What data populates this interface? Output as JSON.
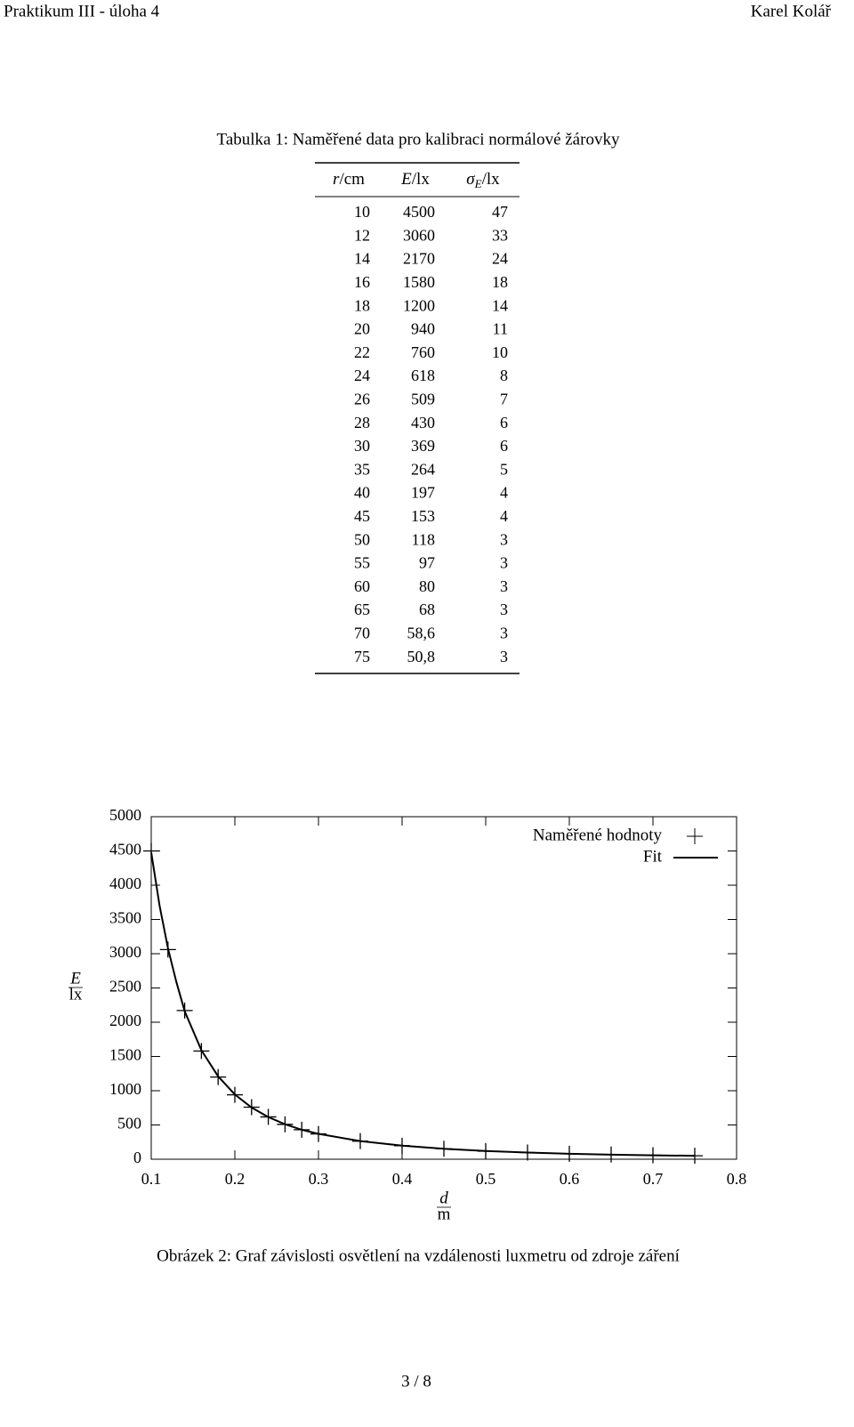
{
  "header": {
    "left": "Praktikum III - úloha 4",
    "right": "Karel Kolář"
  },
  "table": {
    "caption": "Tabulka 1: Naměřené data pro kalibraci normálové žárovky",
    "columns": [
      {
        "symbol": "r",
        "unit": "/cm"
      },
      {
        "symbol": "E",
        "unit": "/lx"
      },
      {
        "symbol": "σ",
        "subscript": "E",
        "unit": "/lx"
      }
    ],
    "rows": [
      [
        10,
        4500,
        47
      ],
      [
        12,
        3060,
        33
      ],
      [
        14,
        2170,
        24
      ],
      [
        16,
        1580,
        18
      ],
      [
        18,
        1200,
        14
      ],
      [
        20,
        940,
        11
      ],
      [
        22,
        760,
        10
      ],
      [
        24,
        618,
        8
      ],
      [
        26,
        509,
        7
      ],
      [
        28,
        430,
        6
      ],
      [
        30,
        369,
        6
      ],
      [
        35,
        264,
        5
      ],
      [
        40,
        197,
        4
      ],
      [
        45,
        153,
        4
      ],
      [
        50,
        118,
        3
      ],
      [
        55,
        97,
        3
      ],
      [
        60,
        80,
        3
      ],
      [
        65,
        68,
        3
      ],
      [
        70,
        "58,6",
        3
      ],
      [
        75,
        "50,8",
        3
      ]
    ]
  },
  "chart_data": {
    "type": "scatter",
    "x_label": {
      "numerator": "d",
      "denominator": "m"
    },
    "y_label": {
      "numerator": "E",
      "denominator": "lx"
    },
    "xlim": [
      0.1,
      0.8
    ],
    "xticks": [
      0.1,
      0.2,
      0.3,
      0.4,
      0.5,
      0.6,
      0.7,
      0.8
    ],
    "ylim": [
      0,
      5000
    ],
    "yticks": [
      0,
      500,
      1000,
      1500,
      2000,
      2500,
      3000,
      3500,
      4000,
      4500,
      5000
    ],
    "legend": "upper right",
    "series": [
      {
        "name": "Naměřené hodnoty",
        "color": "#000000",
        "marker": "plus",
        "x": [
          0.1,
          0.12,
          0.14,
          0.16,
          0.18,
          0.2,
          0.22,
          0.24,
          0.26,
          0.28,
          0.3,
          0.35,
          0.4,
          0.45,
          0.5,
          0.55,
          0.6,
          0.65,
          0.7,
          0.75
        ],
        "values": [
          4500,
          3060,
          2170,
          1580,
          1200,
          940,
          760,
          618,
          509,
          430,
          369,
          264,
          197,
          153,
          118,
          97,
          80,
          68,
          58.6,
          50.8
        ]
      },
      {
        "name": "Fit",
        "color": "#000000",
        "marker": "line",
        "x": [
          0.1,
          0.11,
          0.12,
          0.13,
          0.14,
          0.16,
          0.18,
          0.2,
          0.22,
          0.24,
          0.26,
          0.28,
          0.3,
          0.35,
          0.4,
          0.45,
          0.5,
          0.55,
          0.6,
          0.65,
          0.7,
          0.75
        ],
        "values": [
          4480,
          3700,
          3080,
          2590,
          2160,
          1590,
          1210,
          945,
          755,
          615,
          510,
          430,
          370,
          265,
          198,
          152,
          120,
          97,
          80,
          67,
          57,
          50
        ]
      }
    ]
  },
  "figure_caption": "Obrázek 2: Graf závislosti osvětlení na vzdálenosti luxmetru od zdroje záření",
  "footer": "3 / 8"
}
